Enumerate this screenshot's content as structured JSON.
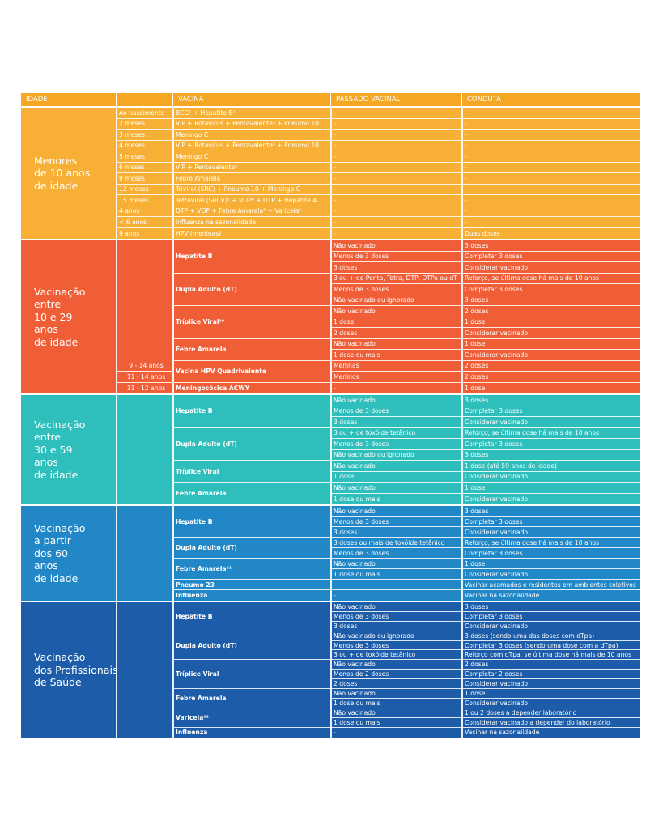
{
  "headers": [
    "IDADE",
    "VACINA",
    "PASSADO VACINAL",
    "CONDUTA"
  ],
  "colors": {
    "orange": "#f7b035",
    "red": "#ef5e37",
    "teal": "#2ebfbd",
    "blue": "#2287c7",
    "darkblue": "#1c5ca8",
    "header": "#f5a623"
  },
  "sections": [
    {
      "id": "menores",
      "color": "#f7b035",
      "title": [
        "Menores",
        "de 10 anos",
        "de idade"
      ],
      "rows": [
        {
          "age": "Ao nascimento",
          "vaccine": "BCG¹ + Hepatite B²",
          "passado": "-",
          "conduta": "-"
        },
        {
          "age": "2 meses",
          "vaccine": "VIP + Rotavirus + Pentavalente³ + Pneumo 10",
          "passado": "-",
          "conduta": "-"
        },
        {
          "age": "3 meses",
          "vaccine": "Meningo C",
          "passado": "-",
          "conduta": "-"
        },
        {
          "age": "4 meses",
          "vaccine": "VIP + Rotavirus + Pentavalente³ + Pneumo 10",
          "passado": "-",
          "conduta": "-"
        },
        {
          "age": "5 meses",
          "vaccine": "Meningo C",
          "passado": "-",
          "conduta": "-"
        },
        {
          "age": "6 meses",
          "vaccine": "VIP + Pentavalente⁴",
          "passado": "-",
          "conduta": "-"
        },
        {
          "age": "9 meses",
          "vaccine": "Febre Amarela",
          "passado": "-",
          "conduta": "-"
        },
        {
          "age": "12 meses",
          "vaccine": "Triviral (SRC) + Pneumo 10 + Meningo C",
          "passado": "-",
          "conduta": "-"
        },
        {
          "age": "15 meses",
          "vaccine": "Tetraviral (SRCV)⁵ + VOP⁶ + DTP + Hepatite A",
          "passado": "-",
          "conduta": "-"
        },
        {
          "age": "4 anos",
          "vaccine": "DTP + VOP + Febre Amarela⁸ + Varicela⁹",
          "passado": "-",
          "conduta": "-"
        },
        {
          "age": "< 6 anos",
          "vaccine": "Influenza na sazonalidade",
          "passado": "-",
          "conduta": "-"
        },
        {
          "age": "9 anos",
          "vaccine": "HPV (meninas)",
          "passado": "-",
          "conduta": "Duas doses"
        }
      ]
    },
    {
      "id": "10a29",
      "color": "#ef5e37",
      "title": [
        "Vacinação",
        "entre",
        "10 e 29",
        "anos",
        "de idade"
      ],
      "groups": [
        {
          "vaccine": "Hepatite B",
          "rows": [
            {
              "passado": "Não vacinado",
              "conduta": "3 doses"
            },
            {
              "passado": "Menos de 3 doses",
              "conduta": "Completar 3 doses"
            },
            {
              "passado": "3 doses",
              "conduta": "Considerar vacinado"
            }
          ]
        },
        {
          "vaccine": "Dupla Adulto (dT)",
          "rows": [
            {
              "passado": "3 ou + de Penta, Tetra, DTP, DTPa ou dT",
              "conduta": "Reforço, se última dose há mais de 10 anos"
            },
            {
              "passado": "Menos de 3 doses",
              "conduta": "Completar 3 doses"
            },
            {
              "passado": "Não vacinado ou ignorado",
              "conduta": "3 doses"
            }
          ]
        },
        {
          "vaccine": "Tríplice Viral¹⁰",
          "rows": [
            {
              "passado": "Não vacinado",
              "conduta": "2 doses"
            },
            {
              "passado": "1 dose",
              "conduta": "1 dose"
            },
            {
              "passado": "2 doses",
              "conduta": "Considerar vacinado"
            }
          ]
        },
        {
          "vaccine": "Febre Amarela",
          "rows": [
            {
              "passado": "Não vacinado",
              "conduta": "1 dose"
            },
            {
              "passado": "1 dose ou mais",
              "conduta": "Considerar vacinado"
            }
          ]
        },
        {
          "vaccine": "Vacina HPV Quadrivalente",
          "rows": [
            {
              "age": "9 - 14 anos",
              "passado": "Meninas",
              "conduta": "2 doses"
            },
            {
              "age": "11 - 14 anos",
              "passado": "Meninos",
              "conduta": "2 doses"
            }
          ]
        },
        {
          "vaccine": "Meningocócica ACWY",
          "rows": [
            {
              "age": "11 - 12 anos",
              "passado": "-",
              "conduta": "1 dose"
            }
          ]
        }
      ]
    },
    {
      "id": "30a59",
      "color": "#2ebfbd",
      "title": [
        "Vacinação",
        "entre",
        "30 e 59",
        "anos",
        "de idade"
      ],
      "groups": [
        {
          "vaccine": "Hepatite B",
          "rows": [
            {
              "passado": "Não vacinado",
              "conduta": "3 doses"
            },
            {
              "passado": "Menos de 3 doses",
              "conduta": "Completar 3 doses"
            },
            {
              "passado": "3 doses",
              "conduta": "Considerar vacinado"
            }
          ]
        },
        {
          "vaccine": "Dupla Adulto (dT)",
          "rows": [
            {
              "passado": "3 ou + de toxóide tetânico",
              "conduta": "Reforço, se última dose há mais de 10 anos"
            },
            {
              "passado": "Menos de 3 doses",
              "conduta": "Completar 3 doses"
            },
            {
              "passado": "Não vacinado ou ignorado",
              "conduta": "3 doses"
            }
          ]
        },
        {
          "vaccine": "Tríplice Viral",
          "rows": [
            {
              "passado": "Não vacinado",
              "conduta": "1 dose (até 59 anos de idade)"
            },
            {
              "passado": "1 dose",
              "conduta": "Considerar vacinado"
            }
          ]
        },
        {
          "vaccine": "Febre Amarela",
          "rows": [
            {
              "passado": "Não vacinado",
              "conduta": "1 dose"
            },
            {
              "passado": "1 dose ou mais",
              "conduta": "Considerar vacinado"
            }
          ]
        }
      ]
    },
    {
      "id": "60mais",
      "color": "#2287c7",
      "title": [
        "Vacinação",
        "a partir",
        "dos 60",
        "anos",
        "de idade"
      ],
      "groups": [
        {
          "vaccine": "Hepatite B",
          "rows": [
            {
              "passado": "Não vacinado",
              "conduta": "3 doses"
            },
            {
              "passado": "Menos de 3 doses",
              "conduta": "Completar 3 doses"
            },
            {
              "passado": "3 doses",
              "conduta": "Considerar vacinado"
            }
          ]
        },
        {
          "vaccine": "Dupla Adulto (dT)",
          "rows": [
            {
              "passado": "3 doses ou mais de toxóide tetânico",
              "conduta": "Reforço, se última dose há mais de 10 anos"
            },
            {
              "passado": "Menos de 3 doses",
              "conduta": "Completar 3 doses"
            }
          ]
        },
        {
          "vaccine": "Febre Amarela¹¹",
          "rows": [
            {
              "passado": "Não vacinado",
              "conduta": "1 dose"
            },
            {
              "passado": "1 dose ou mais",
              "conduta": "Considerar vacinado"
            }
          ]
        },
        {
          "vaccine": "Pneumo 23",
          "rows": [
            {
              "passado": "-",
              "conduta": "Vacinar acamados e residentes em ambientes coletivos"
            }
          ]
        },
        {
          "vaccine": "Influenza",
          "rows": [
            {
              "passado": "-",
              "conduta": "Vacinar na sazonalidade"
            }
          ]
        }
      ]
    },
    {
      "id": "profissionais",
      "color": "#1c5ca8",
      "title": [
        "Vacinação",
        "dos Profissionais",
        "de Saúde"
      ],
      "groups": [
        {
          "vaccine": "Hepatite B",
          "rows": [
            {
              "passado": "Não vacinado",
              "conduta": "3 doses"
            },
            {
              "passado": "Menos de 3 doses",
              "conduta": "Completar 3 doses"
            },
            {
              "passado": "3 doses",
              "conduta": "Considerar vacinado"
            }
          ]
        },
        {
          "vaccine": "Dupla Adulto (dT)",
          "rows": [
            {
              "passado": "Não vacinado ou ignorado",
              "conduta": "3 doses (sendo uma das doses com dTpa)"
            },
            {
              "passado": "Menos de 3 doses",
              "conduta": "Completar 3 doses (sendo uma dose com a dTpa)"
            },
            {
              "passado": "3 ou + de toxóide tetânico",
              "conduta": "Reforço com dTpa, se última dose há mais de 10 anos"
            }
          ]
        },
        {
          "vaccine": "Tríplice Viral",
          "rows": [
            {
              "passado": "Não vacinado",
              "conduta": "2 doses"
            },
            {
              "passado": "Menos de 2 doses",
              "conduta": "Completar 2 doses"
            },
            {
              "passado": "2 doses",
              "conduta": "Considerar vacinado"
            }
          ]
        },
        {
          "vaccine": "Febre Amarela",
          "rows": [
            {
              "passado": "Não vacinado",
              "conduta": "1 dose"
            },
            {
              "passado": "1 dose ou mais",
              "conduta": "Considerar vacinado"
            }
          ]
        },
        {
          "vaccine": "Varicela¹²",
          "rows": [
            {
              "passado": "Não vacinado",
              "conduta": "1 ou 2 doses a depender laboratório"
            },
            {
              "passado": "1 dose ou mais",
              "conduta": "Considerar vacinado a depender do laboratório"
            }
          ]
        },
        {
          "vaccine": "Influenza",
          "rows": [
            {
              "passado": "-",
              "conduta": "Vacinar na sazonalidade"
            }
          ]
        }
      ]
    }
  ]
}
